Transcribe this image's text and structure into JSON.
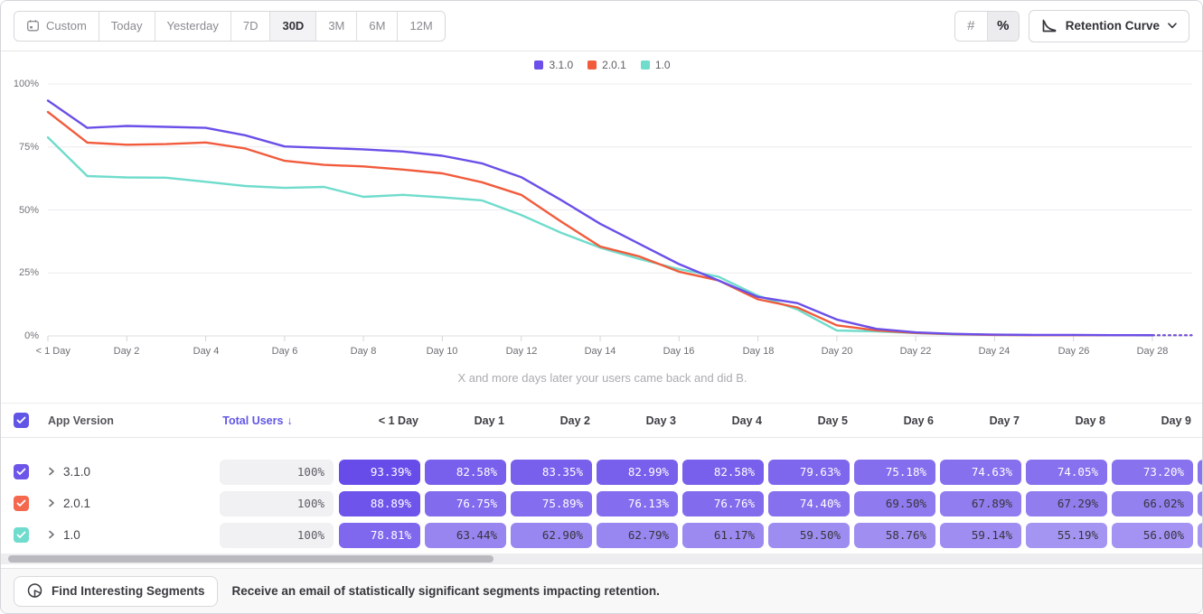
{
  "colors": {
    "accent": "#6155E6",
    "pill_base_rgb": [
      93,
      63,
      232
    ],
    "pill_light_text_min": 71
  },
  "toolbar": {
    "date_ranges": [
      {
        "label": "Custom",
        "icon": "calendar-icon",
        "active": false
      },
      {
        "label": "Today",
        "active": false
      },
      {
        "label": "Yesterday",
        "active": false
      },
      {
        "label": "7D",
        "active": false
      },
      {
        "label": "30D",
        "active": true
      },
      {
        "label": "3M",
        "active": false
      },
      {
        "label": "6M",
        "active": false
      },
      {
        "label": "12M",
        "active": false
      }
    ],
    "display_modes": [
      {
        "label": "#",
        "active": false
      },
      {
        "label": "%",
        "active": true
      }
    ],
    "chart_type_selector": {
      "label": "Retention Curve",
      "icon": "retention-curve-icon"
    }
  },
  "legend": [
    {
      "label": "3.1.0",
      "color": "#6B4FE8"
    },
    {
      "label": "2.0.1",
      "color": "#F15B3C"
    },
    {
      "label": "1.0",
      "color": "#6FDCCC"
    }
  ],
  "chart_data": {
    "type": "line",
    "subtitle": "X and more days later your users came back and did B.",
    "x_unit": "days since first event",
    "x_range": [
      0,
      29
    ],
    "ylim": [
      0,
      100
    ],
    "grid": true,
    "legend_position": "top-center",
    "y_tick_labels": [
      "0%",
      "25%",
      "50%",
      "75%",
      "100%"
    ],
    "x_tick_labels": [
      "< 1 Day",
      "Day 2",
      "Day 4",
      "Day 6",
      "Day 8",
      "Day 10",
      "Day 12",
      "Day 14",
      "Day 16",
      "Day 18",
      "Day 20",
      "Day 22",
      "Day 24",
      "Day 26",
      "Day 28"
    ],
    "dashed_tail_from_day": 28,
    "series": [
      {
        "name": "3.1.0",
        "color": "#6B4FE8",
        "values": [
          93.39,
          82.58,
          83.35,
          82.99,
          82.58,
          79.63,
          75.18,
          74.63,
          74.05,
          73.2,
          71.5,
          68.5,
          63.0,
          54.0,
          44.5,
          36.5,
          28.5,
          22.0,
          15.5,
          13.0,
          6.5,
          2.8,
          1.4,
          0.8,
          0.5,
          0.4,
          0.4,
          0.3,
          0.3,
          0.3
        ]
      },
      {
        "name": "2.0.1",
        "color": "#F15B3C",
        "values": [
          88.89,
          76.75,
          75.89,
          76.13,
          76.76,
          74.4,
          69.5,
          67.89,
          67.29,
          66.02,
          64.5,
          61.0,
          56.0,
          45.5,
          35.5,
          31.5,
          25.5,
          22.0,
          14.5,
          11.3,
          4.2,
          2.2,
          1.2,
          0.7,
          0.4,
          0.3,
          0.3,
          0.3,
          0.3,
          0.3
        ]
      },
      {
        "name": "1.0",
        "color": "#6FDCCC",
        "values": [
          78.81,
          63.44,
          62.9,
          62.79,
          61.17,
          59.5,
          58.76,
          59.14,
          55.19,
          56.0,
          55.0,
          53.8,
          48.0,
          41.0,
          35.0,
          30.5,
          26.5,
          23.5,
          16.0,
          10.5,
          2.1,
          1.8,
          1.1,
          0.6,
          0.4,
          0.3,
          0.3,
          0.3,
          0.2,
          0.2
        ]
      }
    ]
  },
  "table": {
    "select_all_checked": true,
    "columns": {
      "app_version": "App Version",
      "total_users": "Total Users",
      "sort_arrow": "↓",
      "days": [
        "< 1 Day",
        "Day 1",
        "Day 2",
        "Day 3",
        "Day 4",
        "Day 5",
        "Day 6",
        "Day 7",
        "Day 8",
        "Day 9"
      ]
    },
    "rows": [
      {
        "name": "3.1.0",
        "color": "#6C55E8",
        "checked": true,
        "total": "100%",
        "values": [
          "93.39%",
          "82.58%",
          "83.35%",
          "82.99%",
          "82.58%",
          "79.63%",
          "75.18%",
          "74.63%",
          "74.05%",
          "73.20%"
        ]
      },
      {
        "name": "2.0.1",
        "color": "#F4694E",
        "checked": true,
        "total": "100%",
        "values": [
          "88.89%",
          "76.75%",
          "75.89%",
          "76.13%",
          "76.76%",
          "74.40%",
          "69.50%",
          "67.89%",
          "67.29%",
          "66.02%"
        ]
      },
      {
        "name": "1.0",
        "color": "#70DCCD",
        "checked": true,
        "total": "100%",
        "values": [
          "78.81%",
          "63.44%",
          "62.90%",
          "62.79%",
          "61.17%",
          "59.50%",
          "58.76%",
          "59.14%",
          "55.19%",
          "56.00%"
        ]
      }
    ]
  },
  "footer": {
    "button_label": "Find Interesting Segments",
    "message": "Receive an email of statistically significant segments impacting retention."
  }
}
